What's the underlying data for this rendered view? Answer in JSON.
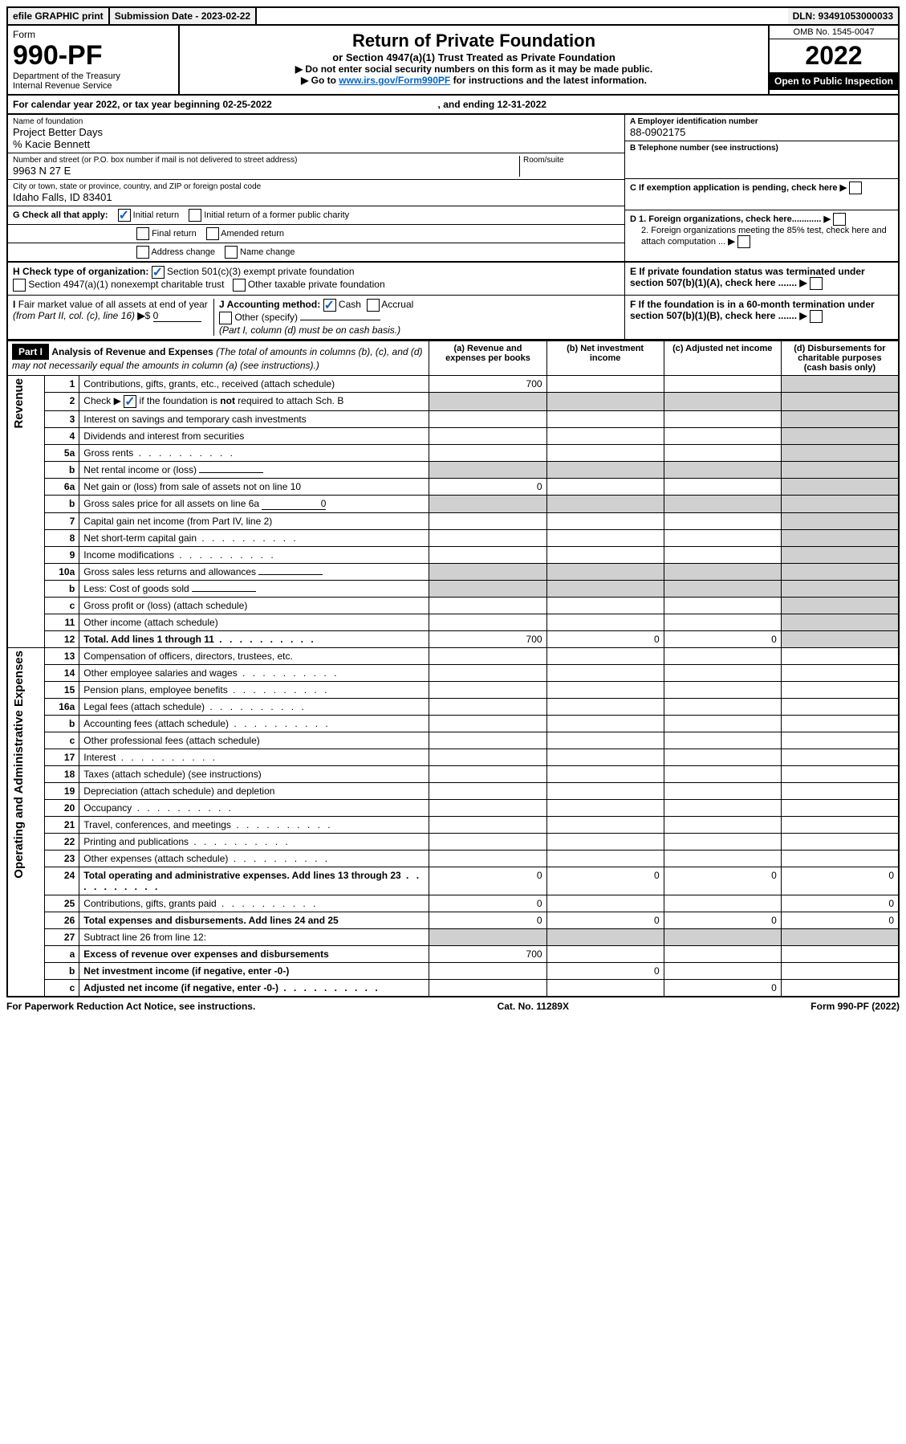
{
  "topbar": {
    "efile": "efile GRAPHIC print",
    "sub_label": "Submission Date - 2023-02-22",
    "dln": "DLN: 93491053000033"
  },
  "header": {
    "form_label": "Form",
    "form_num": "990-PF",
    "dept": "Department of the Treasury\nInternal Revenue Service",
    "title": "Return of Private Foundation",
    "subtitle": "or Section 4947(a)(1) Trust Treated as Private Foundation",
    "instr1": "▶ Do not enter social security numbers on this form as it may be made public.",
    "instr2": "▶ Go to ",
    "instr2_link": "www.irs.gov/Form990PF",
    "instr2_tail": " for instructions and the latest information.",
    "omb": "OMB No. 1545-0047",
    "year": "2022",
    "open_public": "Open to Public Inspection"
  },
  "cal_year": {
    "prefix": "For calendar year 2022, or tax year beginning ",
    "begin": "02-25-2022",
    "mid": " , and ending ",
    "end": "12-31-2022"
  },
  "info": {
    "name_lbl": "Name of foundation",
    "name": "Project Better Days",
    "care_of": "% Kacie Bennett",
    "addr_lbl": "Number and street (or P.O. box number if mail is not delivered to street address)",
    "addr": "9963 N 27 E",
    "room_lbl": "Room/suite",
    "city_lbl": "City or town, state or province, country, and ZIP or foreign postal code",
    "city": "Idaho Falls, ID  83401",
    "ein_lbl": "A Employer identification number",
    "ein": "88-0902175",
    "tel_lbl": "B Telephone number (see instructions)",
    "c_lbl": "C If exemption application is pending, check here",
    "d1_lbl": "D 1. Foreign organizations, check here............",
    "d2_lbl": "2. Foreign organizations meeting the 85% test, check here and attach computation ...",
    "e_lbl": "E If private foundation status was terminated under section 507(b)(1)(A), check here .......",
    "f_lbl": "F If the foundation is in a 60-month termination under section 507(b)(1)(B), check here ......."
  },
  "g": {
    "label": "G Check all that apply:",
    "initial": "Initial return",
    "final": "Final return",
    "addr_change": "Address change",
    "former": "Initial return of a former public charity",
    "amended": "Amended return",
    "name_change": "Name change"
  },
  "h": {
    "label": "H Check type of organization:",
    "opt1": "Section 501(c)(3) exempt private foundation",
    "opt2": "Section 4947(a)(1) nonexempt charitable trust",
    "opt3": "Other taxable private foundation"
  },
  "i": {
    "label": "I Fair market value of all assets at end of year (from Part II, col. (c), line 16) ▶$ ",
    "val": "0"
  },
  "j": {
    "label": "J Accounting method:",
    "cash": "Cash",
    "accrual": "Accrual",
    "other": "Other (specify)",
    "note": "(Part I, column (d) must be on cash basis.)"
  },
  "part1": {
    "tag": "Part I",
    "title": "Analysis of Revenue and Expenses",
    "note": " (The total of amounts in columns (b), (c), and (d) may not necessarily equal the amounts in column (a) (see instructions).)",
    "col_a": "(a)  Revenue and expenses per books",
    "col_b": "(b)  Net investment income",
    "col_c": "(c)  Adjusted net income",
    "col_d": "(d)  Disbursements for charitable purposes (cash basis only)"
  },
  "side_labels": {
    "revenue": "Revenue",
    "expenses": "Operating and Administrative Expenses"
  },
  "rows": [
    {
      "n": "1",
      "d": "Contributions, gifts, grants, etc., received (attach schedule)",
      "a": "700",
      "b": "",
      "c": "",
      "dd": ""
    },
    {
      "n": "2",
      "d": "Check ▶ ☑ if the foundation is not required to attach Sch. B",
      "a": "",
      "b": "",
      "c": "",
      "dd": "",
      "grey": true,
      "checked": true
    },
    {
      "n": "3",
      "d": "Interest on savings and temporary cash investments",
      "a": "",
      "b": "",
      "c": "",
      "dd": ""
    },
    {
      "n": "4",
      "d": "Dividends and interest from securities",
      "a": "",
      "b": "",
      "c": "",
      "dd": ""
    },
    {
      "n": "5a",
      "d": "Gross rents",
      "a": "",
      "b": "",
      "c": "",
      "dd": "",
      "dots": true
    },
    {
      "n": "b",
      "d": "Net rental income or (loss)",
      "a": "",
      "b": "",
      "c": "",
      "dd": "",
      "inline": true,
      "grey": true
    },
    {
      "n": "6a",
      "d": "Net gain or (loss) from sale of assets not on line 10",
      "a": "0",
      "b": "",
      "c": "",
      "dd": ""
    },
    {
      "n": "b",
      "d": "Gross sales price for all assets on line 6a",
      "a": "",
      "b": "",
      "c": "",
      "dd": "",
      "inline": true,
      "inline_val": "0",
      "grey": true
    },
    {
      "n": "7",
      "d": "Capital gain net income (from Part IV, line 2)",
      "a": "",
      "b": "",
      "c": "",
      "dd": ""
    },
    {
      "n": "8",
      "d": "Net short-term capital gain",
      "a": "",
      "b": "",
      "c": "",
      "dd": "",
      "dots": true
    },
    {
      "n": "9",
      "d": "Income modifications",
      "a": "",
      "b": "",
      "c": "",
      "dd": "",
      "dots": true
    },
    {
      "n": "10a",
      "d": "Gross sales less returns and allowances",
      "a": "",
      "b": "",
      "c": "",
      "dd": "",
      "inline": true,
      "grey": true
    },
    {
      "n": "b",
      "d": "Less: Cost of goods sold",
      "a": "",
      "b": "",
      "c": "",
      "dd": "",
      "inline": true,
      "grey": true
    },
    {
      "n": "c",
      "d": "Gross profit or (loss) (attach schedule)",
      "a": "",
      "b": "",
      "c": "",
      "dd": ""
    },
    {
      "n": "11",
      "d": "Other income (attach schedule)",
      "a": "",
      "b": "",
      "c": "",
      "dd": ""
    },
    {
      "n": "12",
      "d": "Total. Add lines 1 through 11",
      "a": "700",
      "b": "0",
      "c": "0",
      "dd": "",
      "bold": true,
      "dots": true
    },
    {
      "n": "13",
      "d": "Compensation of officers, directors, trustees, etc.",
      "a": "",
      "b": "",
      "c": "",
      "dd": ""
    },
    {
      "n": "14",
      "d": "Other employee salaries and wages",
      "a": "",
      "b": "",
      "c": "",
      "dd": "",
      "dots": true
    },
    {
      "n": "15",
      "d": "Pension plans, employee benefits",
      "a": "",
      "b": "",
      "c": "",
      "dd": "",
      "dots": true
    },
    {
      "n": "16a",
      "d": "Legal fees (attach schedule)",
      "a": "",
      "b": "",
      "c": "",
      "dd": "",
      "dots": true
    },
    {
      "n": "b",
      "d": "Accounting fees (attach schedule)",
      "a": "",
      "b": "",
      "c": "",
      "dd": "",
      "dots": true
    },
    {
      "n": "c",
      "d": "Other professional fees (attach schedule)",
      "a": "",
      "b": "",
      "c": "",
      "dd": ""
    },
    {
      "n": "17",
      "d": "Interest",
      "a": "",
      "b": "",
      "c": "",
      "dd": "",
      "dots": true
    },
    {
      "n": "18",
      "d": "Taxes (attach schedule) (see instructions)",
      "a": "",
      "b": "",
      "c": "",
      "dd": ""
    },
    {
      "n": "19",
      "d": "Depreciation (attach schedule) and depletion",
      "a": "",
      "b": "",
      "c": "",
      "dd": ""
    },
    {
      "n": "20",
      "d": "Occupancy",
      "a": "",
      "b": "",
      "c": "",
      "dd": "",
      "dots": true
    },
    {
      "n": "21",
      "d": "Travel, conferences, and meetings",
      "a": "",
      "b": "",
      "c": "",
      "dd": "",
      "dots": true
    },
    {
      "n": "22",
      "d": "Printing and publications",
      "a": "",
      "b": "",
      "c": "",
      "dd": "",
      "dots": true
    },
    {
      "n": "23",
      "d": "Other expenses (attach schedule)",
      "a": "",
      "b": "",
      "c": "",
      "dd": "",
      "dots": true
    },
    {
      "n": "24",
      "d": "Total operating and administrative expenses. Add lines 13 through 23",
      "a": "0",
      "b": "0",
      "c": "0",
      "dd": "0",
      "bold": true,
      "dots": true
    },
    {
      "n": "25",
      "d": "Contributions, gifts, grants paid",
      "a": "0",
      "b": "",
      "c": "",
      "dd": "0",
      "dots": true
    },
    {
      "n": "26",
      "d": "Total expenses and disbursements. Add lines 24 and 25",
      "a": "0",
      "b": "0",
      "c": "0",
      "dd": "0",
      "bold": true
    },
    {
      "n": "27",
      "d": "Subtract line 26 from line 12:",
      "a": "",
      "b": "",
      "c": "",
      "dd": "",
      "grey": true
    },
    {
      "n": "a",
      "d": "Excess of revenue over expenses and disbursements",
      "a": "700",
      "b": "",
      "c": "",
      "dd": "",
      "bold": true
    },
    {
      "n": "b",
      "d": "Net investment income (if negative, enter -0-)",
      "a": "",
      "b": "0",
      "c": "",
      "dd": "",
      "bold": true
    },
    {
      "n": "c",
      "d": "Adjusted net income (if negative, enter -0-)",
      "a": "",
      "b": "",
      "c": "0",
      "dd": "",
      "bold": true,
      "dots": true
    }
  ],
  "footer": {
    "left": "For Paperwork Reduction Act Notice, see instructions.",
    "mid": "Cat. No. 11289X",
    "right": "Form 990-PF (2022)"
  },
  "colors": {
    "link": "#0066cc",
    "grey_fill": "#d0d0d0",
    "check": "#1a5cbf"
  }
}
